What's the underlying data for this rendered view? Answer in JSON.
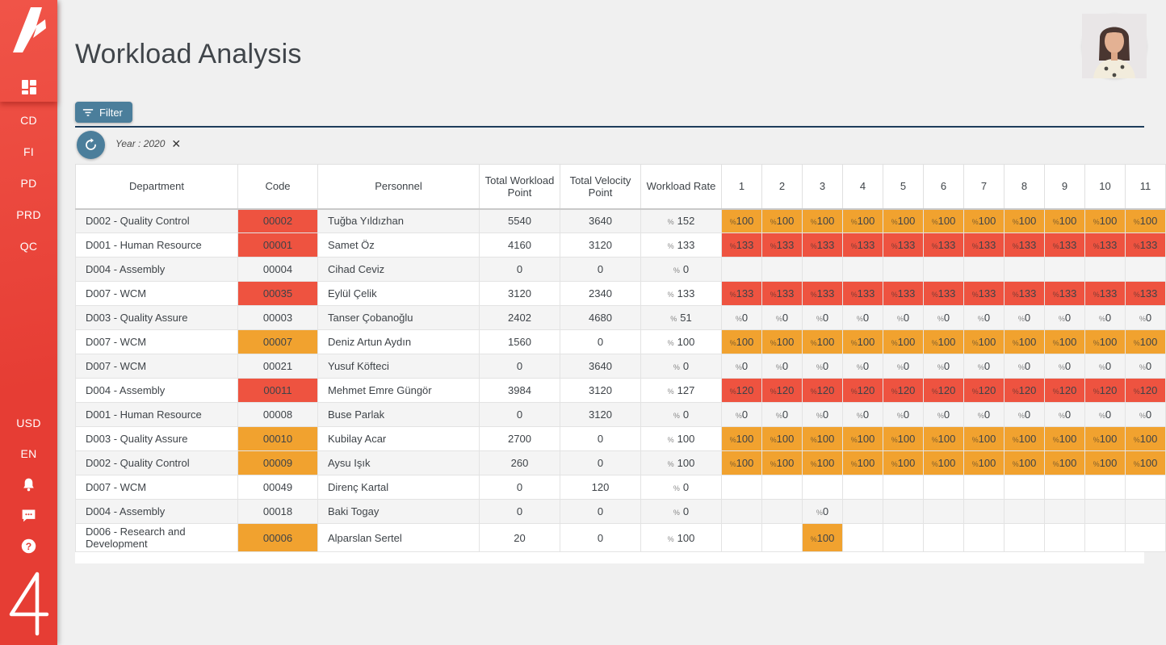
{
  "colors": {
    "sidebar_red": "#f05448",
    "sidebar_red_dark": "#e63d34",
    "cell_red": "#ee5340",
    "cell_orange": "#f1a22f",
    "button_blue": "#4b7e9b",
    "divider_navy": "#1e3d5c",
    "page_bg": "#f0f0f0"
  },
  "sidebar": {
    "nav_items": [
      "CD",
      "FI",
      "PD",
      "PRD",
      "QC"
    ],
    "bottom_items": [
      "USD",
      "EN"
    ],
    "icons": [
      "brand-logo-icon",
      "dashboard-icon",
      "bell-icon",
      "chat-icon",
      "help-icon",
      "brand-4-icon"
    ]
  },
  "header": {
    "title": "Workload Analysis"
  },
  "filter": {
    "button_label": "Filter",
    "chip_label": "Year : 2020",
    "chip_close": "✕"
  },
  "table": {
    "columns": [
      "Department",
      "Code",
      "Personnel",
      "Total Workload Point",
      "Total Velocity Point",
      "Workload Rate"
    ],
    "month_columns": [
      "1",
      "2",
      "3",
      "4",
      "5",
      "6",
      "7",
      "8",
      "9",
      "10",
      "11"
    ],
    "rows": [
      {
        "department": "D002 - Quality Control",
        "code": "00002",
        "code_color": "red",
        "personnel": "Tuğba Yıldızhan",
        "total_workload_point": "5540",
        "total_velocity_point": "3640",
        "workload_rate": "152",
        "months": [
          {
            "v": "100",
            "c": "orange"
          },
          {
            "v": "100",
            "c": "orange"
          },
          {
            "v": "100",
            "c": "orange"
          },
          {
            "v": "100",
            "c": "orange"
          },
          {
            "v": "100",
            "c": "orange"
          },
          {
            "v": "100",
            "c": "orange"
          },
          {
            "v": "100",
            "c": "orange"
          },
          {
            "v": "100",
            "c": "orange"
          },
          {
            "v": "100",
            "c": "orange"
          },
          {
            "v": "100",
            "c": "orange"
          },
          {
            "v": "100",
            "c": "orange"
          }
        ]
      },
      {
        "department": "D001 - Human Resource",
        "code": "00001",
        "code_color": "red",
        "personnel": "Samet Öz",
        "total_workload_point": "4160",
        "total_velocity_point": "3120",
        "workload_rate": "133",
        "months": [
          {
            "v": "133",
            "c": "red"
          },
          {
            "v": "133",
            "c": "red"
          },
          {
            "v": "133",
            "c": "red"
          },
          {
            "v": "133",
            "c": "red"
          },
          {
            "v": "133",
            "c": "red"
          },
          {
            "v": "133",
            "c": "red"
          },
          {
            "v": "133",
            "c": "red"
          },
          {
            "v": "133",
            "c": "red"
          },
          {
            "v": "133",
            "c": "red"
          },
          {
            "v": "133",
            "c": "red"
          },
          {
            "v": "133",
            "c": "red"
          }
        ]
      },
      {
        "department": "D004 - Assembly",
        "code": "00004",
        "code_color": "",
        "personnel": "Cihad Ceviz",
        "total_workload_point": "0",
        "total_velocity_point": "0",
        "workload_rate": "0",
        "months": [
          {
            "v": "",
            "c": ""
          },
          {
            "v": "",
            "c": ""
          },
          {
            "v": "",
            "c": ""
          },
          {
            "v": "",
            "c": ""
          },
          {
            "v": "",
            "c": ""
          },
          {
            "v": "",
            "c": ""
          },
          {
            "v": "",
            "c": ""
          },
          {
            "v": "",
            "c": ""
          },
          {
            "v": "",
            "c": ""
          },
          {
            "v": "",
            "c": ""
          },
          {
            "v": "",
            "c": ""
          }
        ]
      },
      {
        "department": "D007 - WCM",
        "code": "00035",
        "code_color": "red",
        "personnel": "Eylül Çelik",
        "total_workload_point": "3120",
        "total_velocity_point": "2340",
        "workload_rate": "133",
        "months": [
          {
            "v": "133",
            "c": "red"
          },
          {
            "v": "133",
            "c": "red"
          },
          {
            "v": "133",
            "c": "red"
          },
          {
            "v": "133",
            "c": "red"
          },
          {
            "v": "133",
            "c": "red"
          },
          {
            "v": "133",
            "c": "red"
          },
          {
            "v": "133",
            "c": "red"
          },
          {
            "v": "133",
            "c": "red"
          },
          {
            "v": "133",
            "c": "red"
          },
          {
            "v": "133",
            "c": "red"
          },
          {
            "v": "133",
            "c": "red"
          }
        ]
      },
      {
        "department": "D003 - Quality Assure",
        "code": "00003",
        "code_color": "",
        "personnel": "Tanser Çobanoğlu",
        "total_workload_point": "2402",
        "total_velocity_point": "4680",
        "workload_rate": "51",
        "months": [
          {
            "v": "0",
            "c": "plain"
          },
          {
            "v": "0",
            "c": "plain"
          },
          {
            "v": "0",
            "c": "plain"
          },
          {
            "v": "0",
            "c": "plain"
          },
          {
            "v": "0",
            "c": "plain"
          },
          {
            "v": "0",
            "c": "plain"
          },
          {
            "v": "0",
            "c": "plain"
          },
          {
            "v": "0",
            "c": "plain"
          },
          {
            "v": "0",
            "c": "plain"
          },
          {
            "v": "0",
            "c": "plain"
          },
          {
            "v": "0",
            "c": "plain"
          }
        ]
      },
      {
        "department": "D007 - WCM",
        "code": "00007",
        "code_color": "orange",
        "personnel": "Deniz Artun Aydın",
        "total_workload_point": "1560",
        "total_velocity_point": "0",
        "workload_rate": "100",
        "months": [
          {
            "v": "100",
            "c": "orange"
          },
          {
            "v": "100",
            "c": "orange"
          },
          {
            "v": "100",
            "c": "orange"
          },
          {
            "v": "100",
            "c": "orange"
          },
          {
            "v": "100",
            "c": "orange"
          },
          {
            "v": "100",
            "c": "orange"
          },
          {
            "v": "100",
            "c": "orange"
          },
          {
            "v": "100",
            "c": "orange"
          },
          {
            "v": "100",
            "c": "orange"
          },
          {
            "v": "100",
            "c": "orange"
          },
          {
            "v": "100",
            "c": "orange"
          }
        ]
      },
      {
        "department": "D007 - WCM",
        "code": "00021",
        "code_color": "",
        "personnel": "Yusuf Köfteci",
        "total_workload_point": "0",
        "total_velocity_point": "3640",
        "workload_rate": "0",
        "months": [
          {
            "v": "0",
            "c": "plain"
          },
          {
            "v": "0",
            "c": "plain"
          },
          {
            "v": "0",
            "c": "plain"
          },
          {
            "v": "0",
            "c": "plain"
          },
          {
            "v": "0",
            "c": "plain"
          },
          {
            "v": "0",
            "c": "plain"
          },
          {
            "v": "0",
            "c": "plain"
          },
          {
            "v": "0",
            "c": "plain"
          },
          {
            "v": "0",
            "c": "plain"
          },
          {
            "v": "0",
            "c": "plain"
          },
          {
            "v": "0",
            "c": "plain"
          }
        ]
      },
      {
        "department": "D004 - Assembly",
        "code": "00011",
        "code_color": "red",
        "personnel": "Mehmet Emre Güngör",
        "total_workload_point": "3984",
        "total_velocity_point": "3120",
        "workload_rate": "127",
        "months": [
          {
            "v": "120",
            "c": "red"
          },
          {
            "v": "120",
            "c": "red"
          },
          {
            "v": "120",
            "c": "red"
          },
          {
            "v": "120",
            "c": "red"
          },
          {
            "v": "120",
            "c": "red"
          },
          {
            "v": "120",
            "c": "red"
          },
          {
            "v": "120",
            "c": "red"
          },
          {
            "v": "120",
            "c": "red"
          },
          {
            "v": "120",
            "c": "red"
          },
          {
            "v": "120",
            "c": "red"
          },
          {
            "v": "120",
            "c": "red"
          }
        ]
      },
      {
        "department": "D001 - Human Resource",
        "code": "00008",
        "code_color": "",
        "personnel": "Buse Parlak",
        "total_workload_point": "0",
        "total_velocity_point": "3120",
        "workload_rate": "0",
        "months": [
          {
            "v": "0",
            "c": "plain"
          },
          {
            "v": "0",
            "c": "plain"
          },
          {
            "v": "0",
            "c": "plain"
          },
          {
            "v": "0",
            "c": "plain"
          },
          {
            "v": "0",
            "c": "plain"
          },
          {
            "v": "0",
            "c": "plain"
          },
          {
            "v": "0",
            "c": "plain"
          },
          {
            "v": "0",
            "c": "plain"
          },
          {
            "v": "0",
            "c": "plain"
          },
          {
            "v": "0",
            "c": "plain"
          },
          {
            "v": "0",
            "c": "plain"
          }
        ]
      },
      {
        "department": "D003 - Quality Assure",
        "code": "00010",
        "code_color": "orange",
        "personnel": "Kubilay Acar",
        "total_workload_point": "2700",
        "total_velocity_point": "0",
        "workload_rate": "100",
        "months": [
          {
            "v": "100",
            "c": "orange"
          },
          {
            "v": "100",
            "c": "orange"
          },
          {
            "v": "100",
            "c": "orange"
          },
          {
            "v": "100",
            "c": "orange"
          },
          {
            "v": "100",
            "c": "orange"
          },
          {
            "v": "100",
            "c": "orange"
          },
          {
            "v": "100",
            "c": "orange"
          },
          {
            "v": "100",
            "c": "orange"
          },
          {
            "v": "100",
            "c": "orange"
          },
          {
            "v": "100",
            "c": "orange"
          },
          {
            "v": "100",
            "c": "orange"
          }
        ]
      },
      {
        "department": "D002 - Quality Control",
        "code": "00009",
        "code_color": "orange",
        "personnel": "Aysu Işık",
        "total_workload_point": "260",
        "total_velocity_point": "0",
        "workload_rate": "100",
        "months": [
          {
            "v": "100",
            "c": "orange"
          },
          {
            "v": "100",
            "c": "orange"
          },
          {
            "v": "100",
            "c": "orange"
          },
          {
            "v": "100",
            "c": "orange"
          },
          {
            "v": "100",
            "c": "orange"
          },
          {
            "v": "100",
            "c": "orange"
          },
          {
            "v": "100",
            "c": "orange"
          },
          {
            "v": "100",
            "c": "orange"
          },
          {
            "v": "100",
            "c": "orange"
          },
          {
            "v": "100",
            "c": "orange"
          },
          {
            "v": "100",
            "c": "orange"
          }
        ]
      },
      {
        "department": "D007 - WCM",
        "code": "00049",
        "code_color": "",
        "personnel": "Direnç Kartal",
        "total_workload_point": "0",
        "total_velocity_point": "120",
        "workload_rate": "0",
        "months": [
          {
            "v": "",
            "c": ""
          },
          {
            "v": "",
            "c": ""
          },
          {
            "v": "",
            "c": ""
          },
          {
            "v": "",
            "c": ""
          },
          {
            "v": "",
            "c": ""
          },
          {
            "v": "",
            "c": ""
          },
          {
            "v": "",
            "c": ""
          },
          {
            "v": "",
            "c": ""
          },
          {
            "v": "",
            "c": ""
          },
          {
            "v": "",
            "c": ""
          },
          {
            "v": "",
            "c": ""
          }
        ]
      },
      {
        "department": "D004 - Assembly",
        "code": "00018",
        "code_color": "",
        "personnel": "Baki Togay",
        "total_workload_point": "0",
        "total_velocity_point": "0",
        "workload_rate": "0",
        "months": [
          {
            "v": "",
            "c": ""
          },
          {
            "v": "",
            "c": ""
          },
          {
            "v": "0",
            "c": "plain"
          },
          {
            "v": "",
            "c": ""
          },
          {
            "v": "",
            "c": ""
          },
          {
            "v": "",
            "c": ""
          },
          {
            "v": "",
            "c": ""
          },
          {
            "v": "",
            "c": ""
          },
          {
            "v": "",
            "c": ""
          },
          {
            "v": "",
            "c": ""
          },
          {
            "v": "",
            "c": ""
          }
        ]
      },
      {
        "department": "D006 - Research and Development",
        "code": "00006",
        "code_color": "orange",
        "personnel": "Alparslan Sertel",
        "total_workload_point": "20",
        "total_velocity_point": "0",
        "workload_rate": "100",
        "months": [
          {
            "v": "",
            "c": ""
          },
          {
            "v": "",
            "c": ""
          },
          {
            "v": "100",
            "c": "orange"
          },
          {
            "v": "",
            "c": ""
          },
          {
            "v": "",
            "c": ""
          },
          {
            "v": "",
            "c": ""
          },
          {
            "v": "",
            "c": ""
          },
          {
            "v": "",
            "c": ""
          },
          {
            "v": "",
            "c": ""
          },
          {
            "v": "",
            "c": ""
          },
          {
            "v": "",
            "c": ""
          }
        ]
      }
    ]
  }
}
